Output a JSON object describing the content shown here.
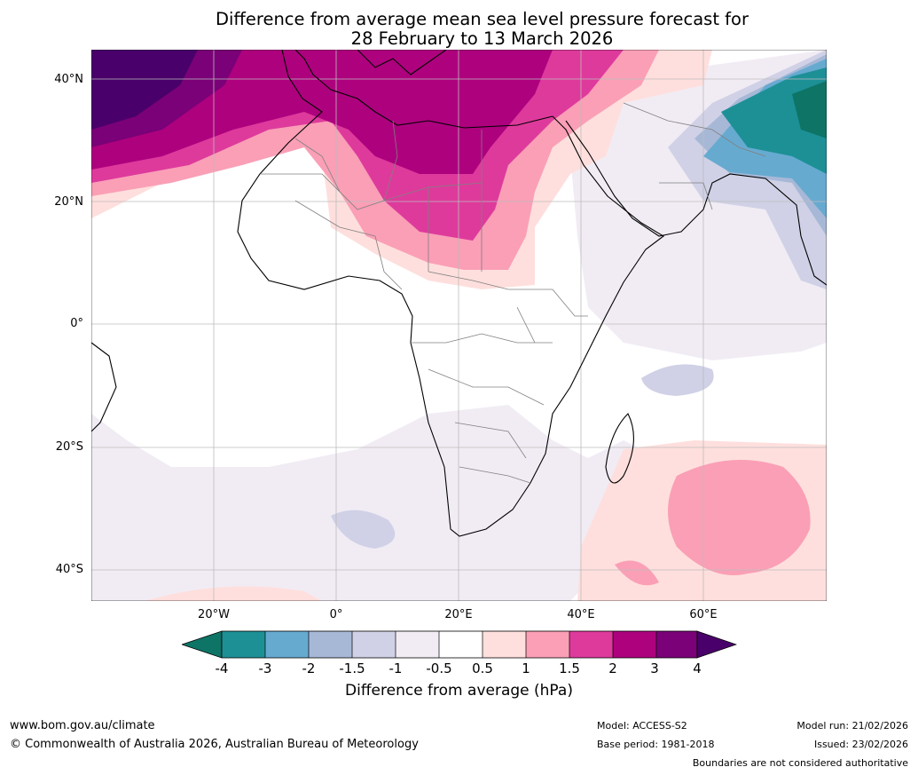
{
  "title": {
    "line1": "Difference from average mean sea level pressure forecast for",
    "line2": "28 February to 13 March 2026"
  },
  "axes": {
    "lat_labels": [
      "40°N",
      "20°N",
      "0°",
      "20°S",
      "40°S"
    ],
    "lon_labels": [
      "20°W",
      "0°",
      "20°E",
      "40°E",
      "60°E"
    ]
  },
  "colorbar": {
    "ticks": [
      "-4",
      "-3",
      "-2",
      "-1.5",
      "-1",
      "-0.5",
      "0.5",
      "1",
      "1.5",
      "2",
      "3",
      "4"
    ],
    "colors": [
      "#0e7466",
      "#1d9096",
      "#67aad0",
      "#a7b8d7",
      "#d0d1e6",
      "#f1ecf4",
      "#ffffff",
      "#fedfdd",
      "#fa9fb6",
      "#de3a9c",
      "#ae017e",
      "#7a0177",
      "#49006a"
    ],
    "label": "Difference from average (hPa)"
  },
  "footer": {
    "url": "www.bom.gov.au/climate",
    "copyright": "© Commonwealth of Australia 2026, Australian Bureau of Meteorology",
    "model": "Model: ACCESS-S2",
    "base_period": "Base period: 1981-2018",
    "model_run": "Model run: 21/02/2026",
    "issued": "Issued: 23/02/2026",
    "boundaries": "Boundaries are not considered authoritative"
  }
}
